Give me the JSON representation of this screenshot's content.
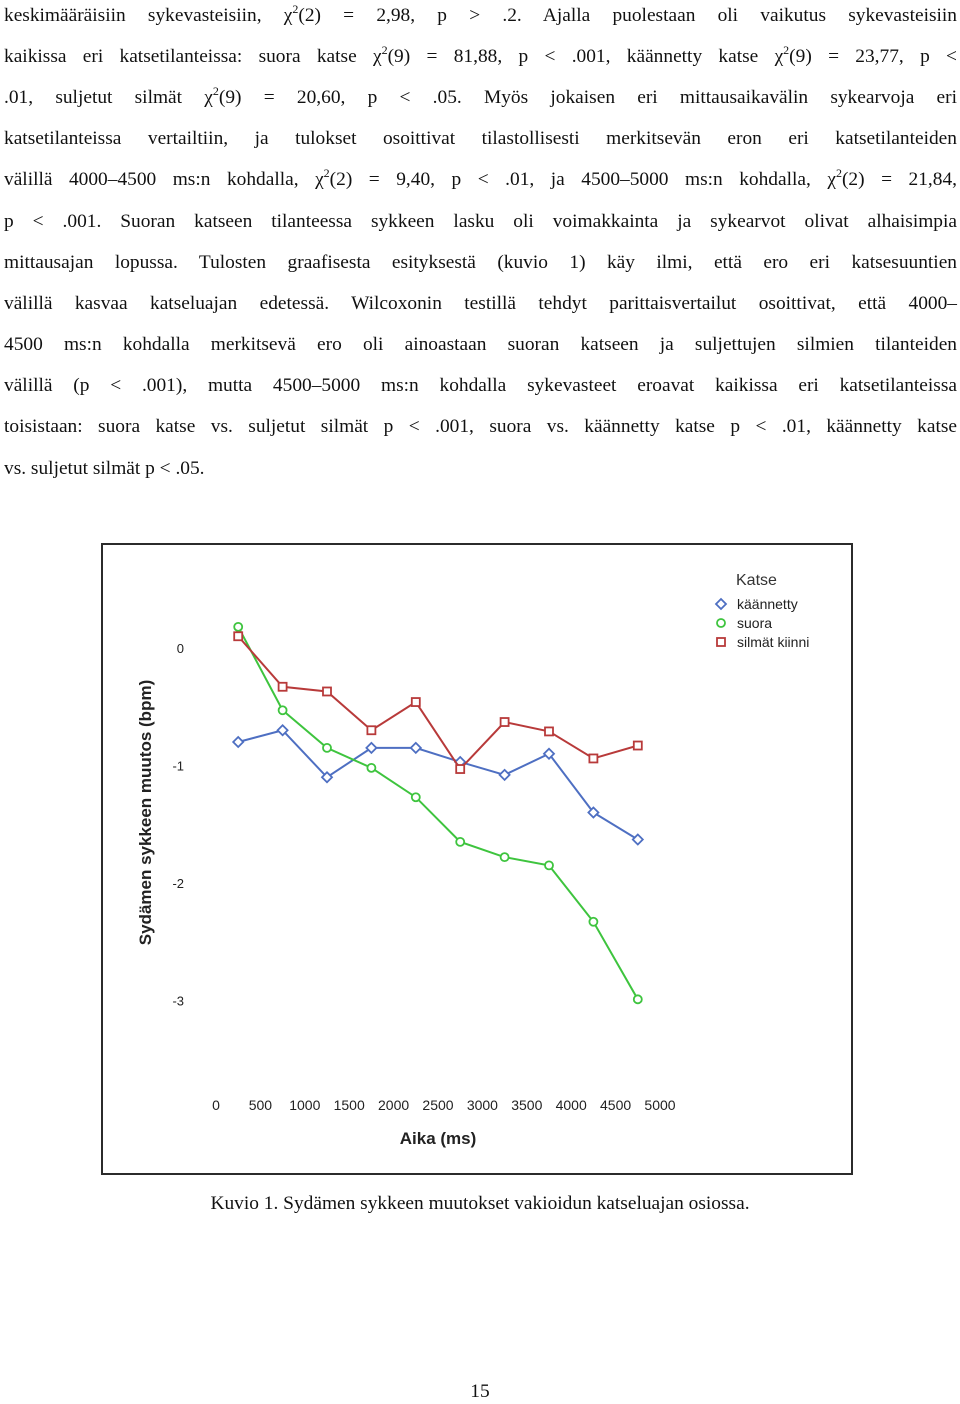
{
  "body_text": {
    "lines": [
      {
        "parts": [
          {
            "t": "keskimääräisiin sykevasteisiin, χ"
          },
          {
            "sup": "2"
          },
          {
            "t": "(2) = 2,98, p > .2. Ajalla puolestaan oli vaikutus sykevasteisiin"
          }
        ]
      },
      {
        "parts": [
          {
            "t": "kaikissa eri katsetilanteissa: suora katse χ"
          },
          {
            "sup": "2"
          },
          {
            "t": "(9) = 81,88, p < .001, käännetty katse χ"
          },
          {
            "sup": "2"
          },
          {
            "t": "(9) = 23,77, p <"
          }
        ]
      },
      {
        "parts": [
          {
            "t": ".01, suljetut silmät χ"
          },
          {
            "sup": "2"
          },
          {
            "t": "(9) = 20,60, p < .05. Myös jokaisen eri mittausaikavälin sykearvoja eri"
          }
        ]
      },
      {
        "parts": [
          {
            "t": "katsetilanteissa vertailtiin, ja tulokset osoittivat tilastollisesti merkitsevän eron eri katsetilanteiden"
          }
        ]
      },
      {
        "parts": [
          {
            "t": "välillä 4000–4500 ms:n kohdalla, χ"
          },
          {
            "sup": "2"
          },
          {
            "t": "(2) = 9,40, p < .01, ja 4500–5000 ms:n kohdalla, χ"
          },
          {
            "sup": "2"
          },
          {
            "t": "(2) = 21,84,"
          }
        ]
      },
      {
        "parts": [
          {
            "t": "p < .001. Suoran katseen tilanteessa sykkeen lasku oli voimakkainta ja sykearvot olivat alhaisimpia"
          }
        ]
      },
      {
        "parts": [
          {
            "t": "mittausajan lopussa. Tulosten graafisesta esityksestä (kuvio 1) käy ilmi, että ero eri katsesuuntien"
          }
        ]
      },
      {
        "parts": [
          {
            "t": "välillä kasvaa katseluajan edetessä. Wilcoxonin testillä tehdyt parittaisvertailut osoittivat, että 4000–"
          }
        ]
      },
      {
        "parts": [
          {
            "t": "4500 ms:n kohdalla merkitsevä ero oli ainoastaan suoran katseen ja suljettujen silmien tilanteiden"
          }
        ]
      },
      {
        "parts": [
          {
            "t": "välillä (p < .001), mutta 4500–5000 ms:n kohdalla sykevasteet eroavat kaikissa eri katsetilanteissa"
          }
        ]
      },
      {
        "parts": [
          {
            "t": "toisistaan: suora katse vs. suljetut silmät p < .001, suora vs. käännetty katse p < .01, käännetty katse"
          }
        ]
      },
      {
        "parts": [
          {
            "t": "vs. suljetut silmät p < .05."
          }
        ]
      }
    ]
  },
  "chart_data": {
    "type": "line",
    "xlabel": "Aika (ms)",
    "ylabel": "Sydämen sykkeen muutos (bpm)",
    "x_ticks": [
      0,
      500,
      1000,
      1500,
      2000,
      2500,
      3000,
      3500,
      4000,
      4500,
      5000
    ],
    "y_ticks": [
      0,
      -1,
      -2,
      -3
    ],
    "xlim": [
      0,
      5000
    ],
    "ylim": [
      -3.0,
      0.1
    ],
    "legend_title": "Katse",
    "legend_position": "top-right",
    "x": [
      250,
      750,
      1250,
      1750,
      2250,
      2750,
      3250,
      3750,
      4250,
      4750
    ],
    "series": [
      {
        "name": "käännetty",
        "color": "#4e6fc2",
        "marker": "diamond",
        "values": [
          -0.8,
          -0.7,
          -1.1,
          -0.85,
          -0.85,
          -0.97,
          -1.08,
          -0.9,
          -1.4,
          -1.63
        ]
      },
      {
        "name": "suora",
        "color": "#3ec43e",
        "marker": "circle",
        "values": [
          0.18,
          -0.53,
          -0.85,
          -1.02,
          -1.27,
          -1.65,
          -1.78,
          -1.85,
          -2.33,
          -2.99
        ]
      },
      {
        "name": "silmät kiinni",
        "color": "#b83a3a",
        "marker": "square",
        "values": [
          0.1,
          -0.33,
          -0.37,
          -0.7,
          -0.46,
          -1.03,
          -0.63,
          -0.71,
          -0.94,
          -0.83
        ]
      }
    ]
  },
  "caption": "Kuvio 1. Sydämen sykkeen muutokset vakioidun katseluajan osiossa.",
  "page_number": "15"
}
